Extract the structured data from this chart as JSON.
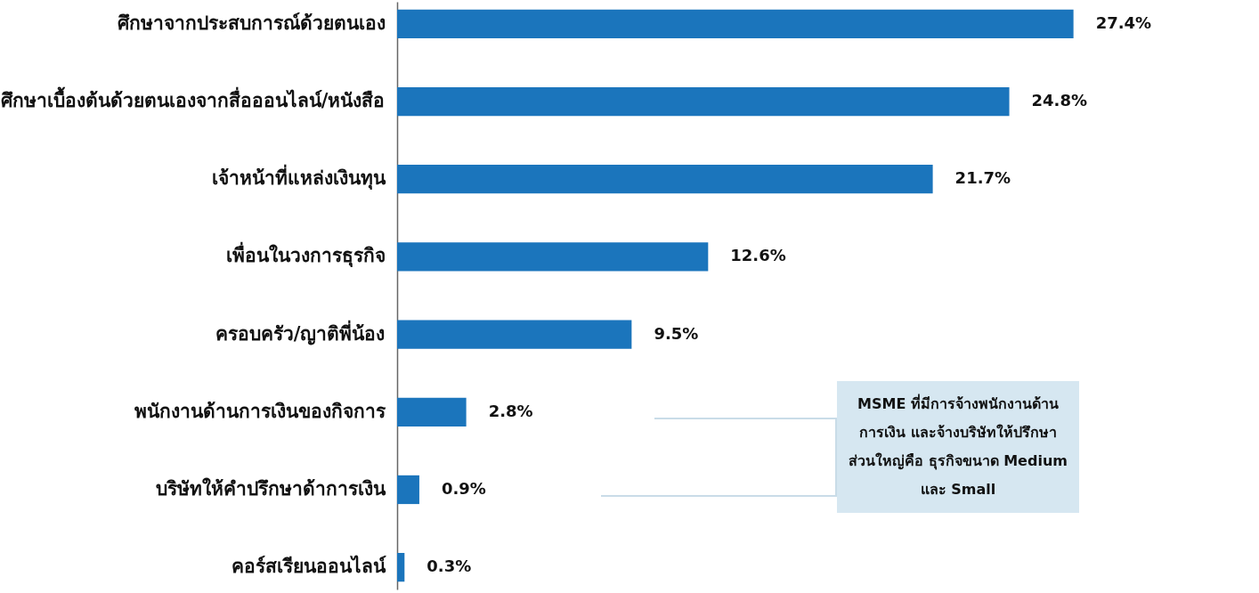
{
  "chart_data": {
    "type": "bar",
    "orientation": "horizontal",
    "color": "#1b75bc",
    "categories": [
      "ศึกษาจากประสบการณ์ด้วยตนเอง",
      "ศึกษาเบื้องต้นด้วยตนเองจากสื่อออนไลน์/หนังสือ",
      "เจ้าหน้าที่แหล่งเงินทุน",
      "เพื่อนในวงการธุรกิจ",
      "ครอบครัว/ญาติพี่น้อง",
      "พนักงานด้านการเงินของกิจการ",
      "บริษัทให้คำปรึกษาด้าการเงิน",
      "คอร์สเรียนออนไลน์"
    ],
    "values": [
      27.4,
      24.8,
      21.7,
      12.6,
      9.5,
      2.8,
      0.9,
      0.3
    ],
    "value_labels": [
      "27.4%",
      "24.8%",
      "21.7%",
      "12.6%",
      "9.5%",
      "2.8%",
      "0.9%",
      "0.3%"
    ],
    "annotations": [
      "MSME ที่มีการจ้างพนักงานด้าน การเงิน และจ้างบริษัทให้ปรึกษา ส่วนใหญ่คือ ธุรกิจขนาด Medium และ Small"
    ]
  }
}
